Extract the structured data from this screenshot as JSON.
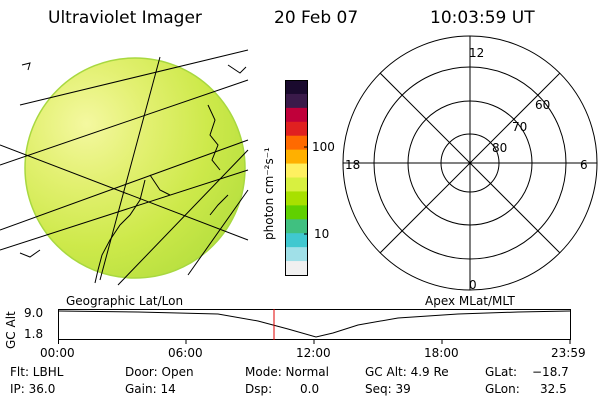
{
  "header": {
    "instrument": "Ultraviolet Imager",
    "date": "20 Feb 07",
    "time": "10:03:59 UT"
  },
  "colorbar": {
    "unit_label": "photon cm⁻²s⁻¹",
    "ticks": [
      "100",
      "10"
    ],
    "colors": [
      "#1a0a2e",
      "#3a1a4a",
      "#c0003a",
      "#e02020",
      "#ff6a00",
      "#ffb000",
      "#fff060",
      "#d8f040",
      "#a8e000",
      "#60d000",
      "#40c080",
      "#40c8d0",
      "#a0e0e8",
      "#f0f0f0"
    ]
  },
  "image_panel": {
    "label": "Geographic Lat/Lon",
    "fill_color": "#d4ee3a"
  },
  "polar_plot": {
    "label": "Apex MLat/MLT",
    "mlt_labels": [
      "12",
      "18",
      "6",
      "0"
    ],
    "lat_labels": [
      "60",
      "70",
      "80"
    ]
  },
  "altitude_plot": {
    "ylabel": "GC Alt",
    "y_ticks": [
      "9.0",
      "1.8"
    ],
    "x_ticks": [
      "00:00",
      "06:00",
      "12:00",
      "18:00",
      "23:59"
    ],
    "marker_color": "#e00000"
  },
  "status": {
    "flt": "Flt: LBHL",
    "ip": "IP: 36.0",
    "door": "Door: Open",
    "gain": "Gain: 14",
    "mode": "Mode: Normal",
    "dsp_label": "Dsp:",
    "dsp_value": "0.0",
    "gc_alt": "GC Alt: 4.9 Re",
    "seq": "Seq: 39",
    "glat_label": "GLat:",
    "glat_value": "−18.7",
    "glon_label": "GLon:",
    "glon_value": "32.5"
  }
}
